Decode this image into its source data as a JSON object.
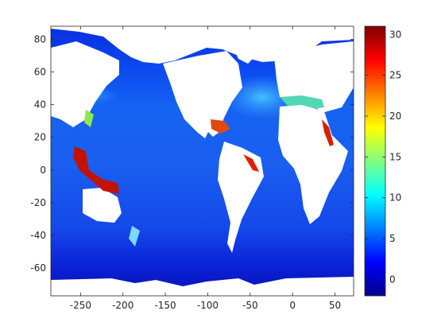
{
  "map": {
    "x_ticks": [
      "-250",
      "-200",
      "-150",
      "-100",
      "-50",
      "0",
      "50"
    ],
    "y_ticks": [
      "80",
      "60",
      "40",
      "20",
      "0",
      "-20",
      "-40",
      "-60"
    ],
    "x_range": [
      -285,
      72
    ],
    "y_range": [
      -77,
      88
    ],
    "land_color": "#ffffff",
    "ocean_palette": "jet"
  },
  "colorbar": {
    "ticks": [
      "30",
      "25",
      "20",
      "15",
      "10",
      "5",
      "0"
    ],
    "range": [
      -2,
      31
    ],
    "palette": "jet"
  }
}
